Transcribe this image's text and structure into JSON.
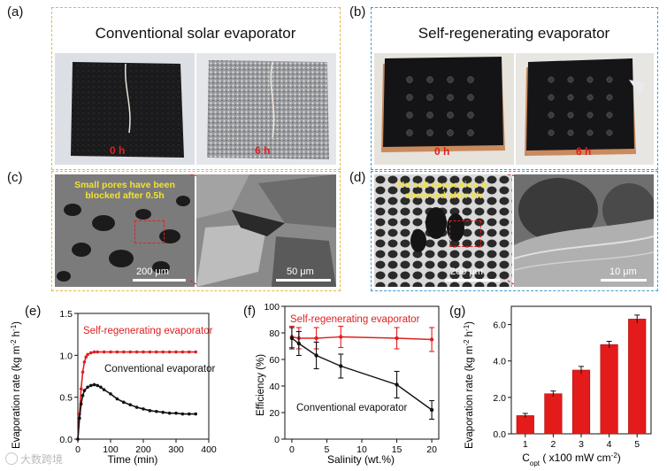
{
  "panels": {
    "a": {
      "label": "(a)",
      "title": "Conventional solar evaporator",
      "photo_times": [
        "0 h",
        "6 h"
      ]
    },
    "b": {
      "label": "(b)",
      "title": "Self-regenerating evaporator",
      "photo_times": [
        "0 h",
        "6 h"
      ]
    },
    "c": {
      "label": "(c)",
      "annotation_line1": "Small pores  have been",
      "annotation_line2": "blocked after 0.5h",
      "scale_left": "200 μm",
      "scale_right": "50 μm"
    },
    "d": {
      "label": "(d)",
      "annotation_line1": "No salt deposition is",
      "annotation_line2": "observed after 6h",
      "scale_left": "200 μm",
      "scale_right": "10 μm"
    },
    "e": {
      "label": "(e)"
    },
    "f": {
      "label": "(f)"
    },
    "g": {
      "label": "(g)"
    }
  },
  "colors": {
    "red": "#e02020",
    "black": "#111111",
    "bar": "#e41b1b",
    "yellow_dash": "#e8b640",
    "blue_dash": "#3d9ad6"
  },
  "chart_data": [
    {
      "id": "e",
      "type": "line",
      "xlabel": "Time (min)",
      "ylabel_parts": [
        "Evaporation rate (kg m",
        "-2",
        " h",
        "-1",
        ")"
      ],
      "xlim": [
        0,
        400
      ],
      "ylim": [
        0,
        1.5
      ],
      "xticks": [
        "0",
        "100",
        "200",
        "300",
        "400"
      ],
      "yticks": [
        "0.0",
        "0.5",
        "1.0",
        "1.5"
      ],
      "series": [
        {
          "name": "Self-regenerating evaporator",
          "color": "#e02020",
          "x": [
            0,
            5,
            10,
            15,
            20,
            25,
            30,
            40,
            50,
            60,
            80,
            100,
            120,
            140,
            160,
            180,
            200,
            220,
            240,
            260,
            280,
            300,
            320,
            340,
            360
          ],
          "y": [
            0,
            0.3,
            0.6,
            0.8,
            0.92,
            0.98,
            1.01,
            1.03,
            1.04,
            1.04,
            1.04,
            1.04,
            1.04,
            1.04,
            1.04,
            1.04,
            1.04,
            1.04,
            1.04,
            1.04,
            1.04,
            1.04,
            1.04,
            1.04,
            1.04
          ]
        },
        {
          "name": "Conventional evaporator",
          "color": "#111111",
          "x": [
            0,
            5,
            10,
            15,
            20,
            30,
            40,
            50,
            60,
            70,
            80,
            100,
            120,
            140,
            160,
            180,
            200,
            220,
            240,
            260,
            280,
            300,
            320,
            340,
            360
          ],
          "y": [
            0,
            0.25,
            0.42,
            0.52,
            0.58,
            0.62,
            0.64,
            0.65,
            0.64,
            0.62,
            0.59,
            0.54,
            0.48,
            0.44,
            0.41,
            0.38,
            0.36,
            0.34,
            0.33,
            0.32,
            0.31,
            0.31,
            0.3,
            0.3,
            0.3
          ]
        }
      ]
    },
    {
      "id": "f",
      "type": "line",
      "xlabel": "Salinity (wt.%)",
      "ylabel": "Efficiency (%)",
      "xlim": [
        -1,
        21
      ],
      "ylim": [
        0,
        100
      ],
      "xticks": [
        "0",
        "5",
        "10",
        "15",
        "20"
      ],
      "yticks": [
        "0",
        "20",
        "40",
        "60",
        "80",
        "100"
      ],
      "series": [
        {
          "name": "Self-regenerating evaporator",
          "color": "#e02020",
          "x": [
            0,
            1,
            3.5,
            7,
            15,
            20
          ],
          "y": [
            77,
            76,
            76,
            77,
            76,
            75
          ],
          "err": [
            8,
            8,
            8,
            8,
            8,
            9
          ]
        },
        {
          "name": "Conventional evaporator",
          "color": "#111111",
          "x": [
            0,
            1,
            3.5,
            7,
            15,
            20
          ],
          "y": [
            76,
            72,
            63,
            55,
            41,
            22
          ],
          "err": [
            8,
            9,
            10,
            9,
            10,
            7
          ]
        }
      ]
    },
    {
      "id": "g",
      "type": "bar",
      "xlabel_parts": [
        "C",
        "opt",
        " ( x100 mW cm",
        "-2",
        ")"
      ],
      "ylabel_parts": [
        "Evaporation rate (kg m",
        "-2",
        " h",
        "-1",
        ")"
      ],
      "categories": [
        "1",
        "2",
        "3",
        "4",
        "5"
      ],
      "values": [
        1.0,
        2.2,
        3.5,
        4.9,
        6.3
      ],
      "err": [
        0.12,
        0.15,
        0.2,
        0.18,
        0.22
      ],
      "ylim": [
        0,
        7
      ],
      "yticks": [
        "0.0",
        "2.0",
        "4.0",
        "6.0"
      ]
    }
  ],
  "watermark": "大数跨境"
}
